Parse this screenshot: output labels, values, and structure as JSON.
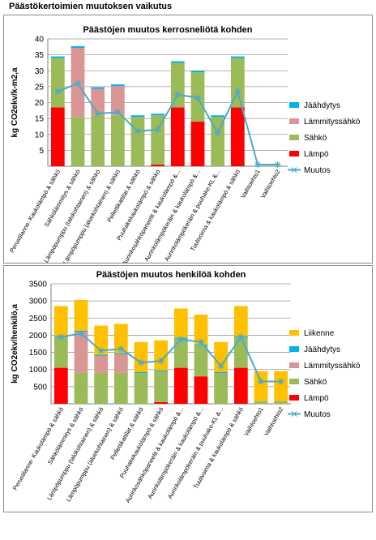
{
  "page_title": "Päästökertoimien muutoksen vaikutus",
  "colors": {
    "liikenne": "#ffc000",
    "jaahdytys": "#00b0f0",
    "lammityssahko": "#da9694",
    "sahko": "#9bbb59",
    "lampo": "#ff0000",
    "muutos": "#4bacc6"
  },
  "categories": [
    "Perustilanne: Kaukolämpö & sähkö",
    "Sähkölämmitys & sähkö",
    "Lämpöpumppu (talokohtainen) & sähkö",
    "Lämpöpumppu (aluekohtainen) & sähkö",
    "Pellettikattilat & sähkö",
    "Puuhakekaukolämpö & sähkö",
    "Aurinkosähköpaneelit & kaukolämpö &...",
    "Aurinkolämpökeräin & kaukolämpö &...",
    "Aurinkolämpökeräin & puuhake-KL &...",
    "Tuulivoima & kaukolämpö & sähkö",
    "Vaihtoehto1",
    "Vaihtoehto2"
  ],
  "chart_data": [
    {
      "type": "bar",
      "stacked": true,
      "title": "Päästöjen muutos kerrosneliötä kohden",
      "ylabel": "kg CO2ekv/k-m2,a",
      "ylim": [
        0,
        40
      ],
      "yticks": [
        5,
        10,
        15,
        20,
        25,
        30,
        35,
        40
      ],
      "grid": true,
      "legend_position": "right",
      "series": [
        {
          "name": "Lämpö",
          "color_key": "lampo",
          "values": [
            18.5,
            0,
            0,
            0,
            0,
            0.5,
            18.5,
            14,
            0,
            18.5,
            0,
            0
          ]
        },
        {
          "name": "Sähkö",
          "color_key": "sahko",
          "values": [
            15.5,
            15.5,
            16,
            16,
            15.5,
            15.5,
            14,
            15.5,
            15.5,
            15.5,
            0,
            0
          ]
        },
        {
          "name": "Lämmityssähkö",
          "color_key": "lammityssahko",
          "values": [
            0,
            21.7,
            8.3,
            9.2,
            0,
            0,
            0,
            0,
            0,
            0,
            0,
            0
          ]
        },
        {
          "name": "Jäähdytys",
          "color_key": "jaahdytys",
          "values": [
            0.5,
            0.5,
            0.5,
            0.5,
            0.5,
            0.5,
            0.5,
            0.5,
            0.5,
            0.5,
            0,
            0
          ]
        }
      ],
      "line": {
        "name": "Muutos",
        "color_key": "muutos",
        "values": [
          23.5,
          26,
          16.5,
          17,
          11,
          11.5,
          22.5,
          21.5,
          10.5,
          23.5,
          0.5,
          0.5
        ]
      }
    },
    {
      "type": "bar",
      "stacked": true,
      "title": "Päästöjen muutos henkilöä kohden",
      "ylabel": "kg CO2ekv/henkilö,a",
      "ylim": [
        0,
        3500
      ],
      "yticks": [
        500,
        1000,
        1500,
        2000,
        2500,
        3000,
        3500
      ],
      "grid": true,
      "legend_position": "right",
      "series": [
        {
          "name": "Lämpö",
          "color_key": "lampo",
          "values": [
            1050,
            0,
            0,
            0,
            0,
            50,
            1050,
            800,
            0,
            1050,
            0,
            0
          ]
        },
        {
          "name": "Sähkö",
          "color_key": "sahko",
          "values": [
            900,
            900,
            900,
            900,
            900,
            900,
            850,
            900,
            900,
            900,
            80,
            80
          ]
        },
        {
          "name": "Lämmityssähkö",
          "color_key": "lammityssahko",
          "values": [
            0,
            1200,
            500,
            550,
            0,
            0,
            0,
            0,
            0,
            0,
            0,
            0
          ]
        },
        {
          "name": "Jäähdytys",
          "color_key": "jaahdytys",
          "values": [
            30,
            30,
            30,
            30,
            30,
            30,
            30,
            30,
            30,
            30,
            0,
            0
          ]
        },
        {
          "name": "Liikenne",
          "color_key": "liikenne",
          "values": [
            870,
            900,
            850,
            850,
            870,
            870,
            850,
            870,
            870,
            870,
            870,
            870
          ]
        }
      ],
      "line": {
        "name": "Muutos",
        "color_key": "muutos",
        "values": [
          1950,
          2050,
          1550,
          1600,
          1200,
          1250,
          1880,
          1800,
          1100,
          1950,
          650,
          650
        ]
      }
    }
  ]
}
